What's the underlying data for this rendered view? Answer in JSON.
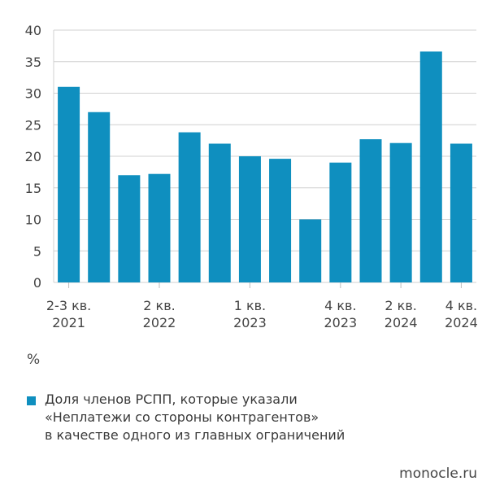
{
  "chart_data": {
    "type": "bar",
    "categories": [
      "2-3 кв. 2021",
      "",
      "",
      "2 кв. 2022",
      "",
      "",
      "1 кв. 2023",
      "",
      "",
      "4 кв. 2023",
      "",
      "2 кв. 2024",
      "",
      "4 кв. 2024"
    ],
    "tick_labels": [
      {
        "index": 0,
        "line1": "2-3 кв.",
        "line2": "2021"
      },
      {
        "index": 3,
        "line1": "2 кв.",
        "line2": "2022"
      },
      {
        "index": 6,
        "line1": "1 кв.",
        "line2": "2023"
      },
      {
        "index": 9,
        "line1": "4 кв.",
        "line2": "2023"
      },
      {
        "index": 11,
        "line1": "2 кв.",
        "line2": "2024"
      },
      {
        "index": 13,
        "line1": "4 кв.",
        "line2": "2024"
      }
    ],
    "series": [
      {
        "name": "Доля членов РСПП, которые указали «Неплатежи со стороны контрагентов» в качестве одного из главных ограничений",
        "values": [
          31,
          27,
          17,
          17.2,
          23.8,
          22,
          20,
          19.6,
          10,
          19,
          22.7,
          22.1,
          36.6,
          22
        ]
      }
    ],
    "ylim": [
      0,
      40
    ],
    "yticks": [
      0,
      5,
      10,
      15,
      20,
      25,
      30,
      35,
      40
    ],
    "ylabel": "%",
    "grid": true,
    "legend_position": "bottom",
    "bar_color": "#0f8fbf"
  },
  "unit_label": "%",
  "legend": {
    "lines": [
      "Доля членов РСПП, которые указали",
      "«Неплатежи со стороны контрагентов»",
      "в качестве одного из главных ограничений"
    ]
  },
  "source": "monocle.ru"
}
